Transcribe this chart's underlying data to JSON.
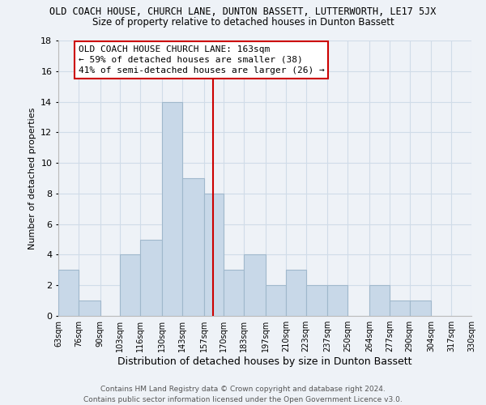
{
  "title": "OLD COACH HOUSE, CHURCH LANE, DUNTON BASSETT, LUTTERWORTH, LE17 5JX",
  "subtitle": "Size of property relative to detached houses in Dunton Bassett",
  "xlabel": "Distribution of detached houses by size in Dunton Bassett",
  "ylabel": "Number of detached properties",
  "bar_color": "#c8d8e8",
  "bar_edge_color": "#a0b8cc",
  "bin_edges": [
    63,
    76,
    90,
    103,
    116,
    130,
    143,
    157,
    170,
    183,
    197,
    210,
    223,
    237,
    250,
    264,
    277,
    290,
    304,
    317,
    330
  ],
  "bar_heights": [
    3,
    1,
    0,
    4,
    5,
    14,
    9,
    8,
    3,
    4,
    2,
    3,
    2,
    2,
    0,
    2,
    1,
    1,
    0,
    0
  ],
  "vline_x": 163,
  "vline_color": "#cc0000",
  "ylim": [
    0,
    18
  ],
  "yticks": [
    0,
    2,
    4,
    6,
    8,
    10,
    12,
    14,
    16,
    18
  ],
  "xtick_labels": [
    "63sqm",
    "76sqm",
    "90sqm",
    "103sqm",
    "116sqm",
    "130sqm",
    "143sqm",
    "157sqm",
    "170sqm",
    "183sqm",
    "197sqm",
    "210sqm",
    "223sqm",
    "237sqm",
    "250sqm",
    "264sqm",
    "277sqm",
    "290sqm",
    "304sqm",
    "317sqm",
    "330sqm"
  ],
  "annotation_title": "OLD COACH HOUSE CHURCH LANE: 163sqm",
  "annotation_line1": "← 59% of detached houses are smaller (38)",
  "annotation_line2": "41% of semi-detached houses are larger (26) →",
  "annotation_box_color": "#ffffff",
  "annotation_box_edge": "#cc0000",
  "footer_line1": "Contains HM Land Registry data © Crown copyright and database right 2024.",
  "footer_line2": "Contains public sector information licensed under the Open Government Licence v3.0.",
  "grid_color": "#d0dce8",
  "background_color": "#eef2f7",
  "title_fontsize": 8.5,
  "subtitle_fontsize": 8.5,
  "ylabel_fontsize": 8,
  "xlabel_fontsize": 9,
  "tick_fontsize": 7,
  "annotation_fontsize": 8,
  "footer_fontsize": 6.5
}
